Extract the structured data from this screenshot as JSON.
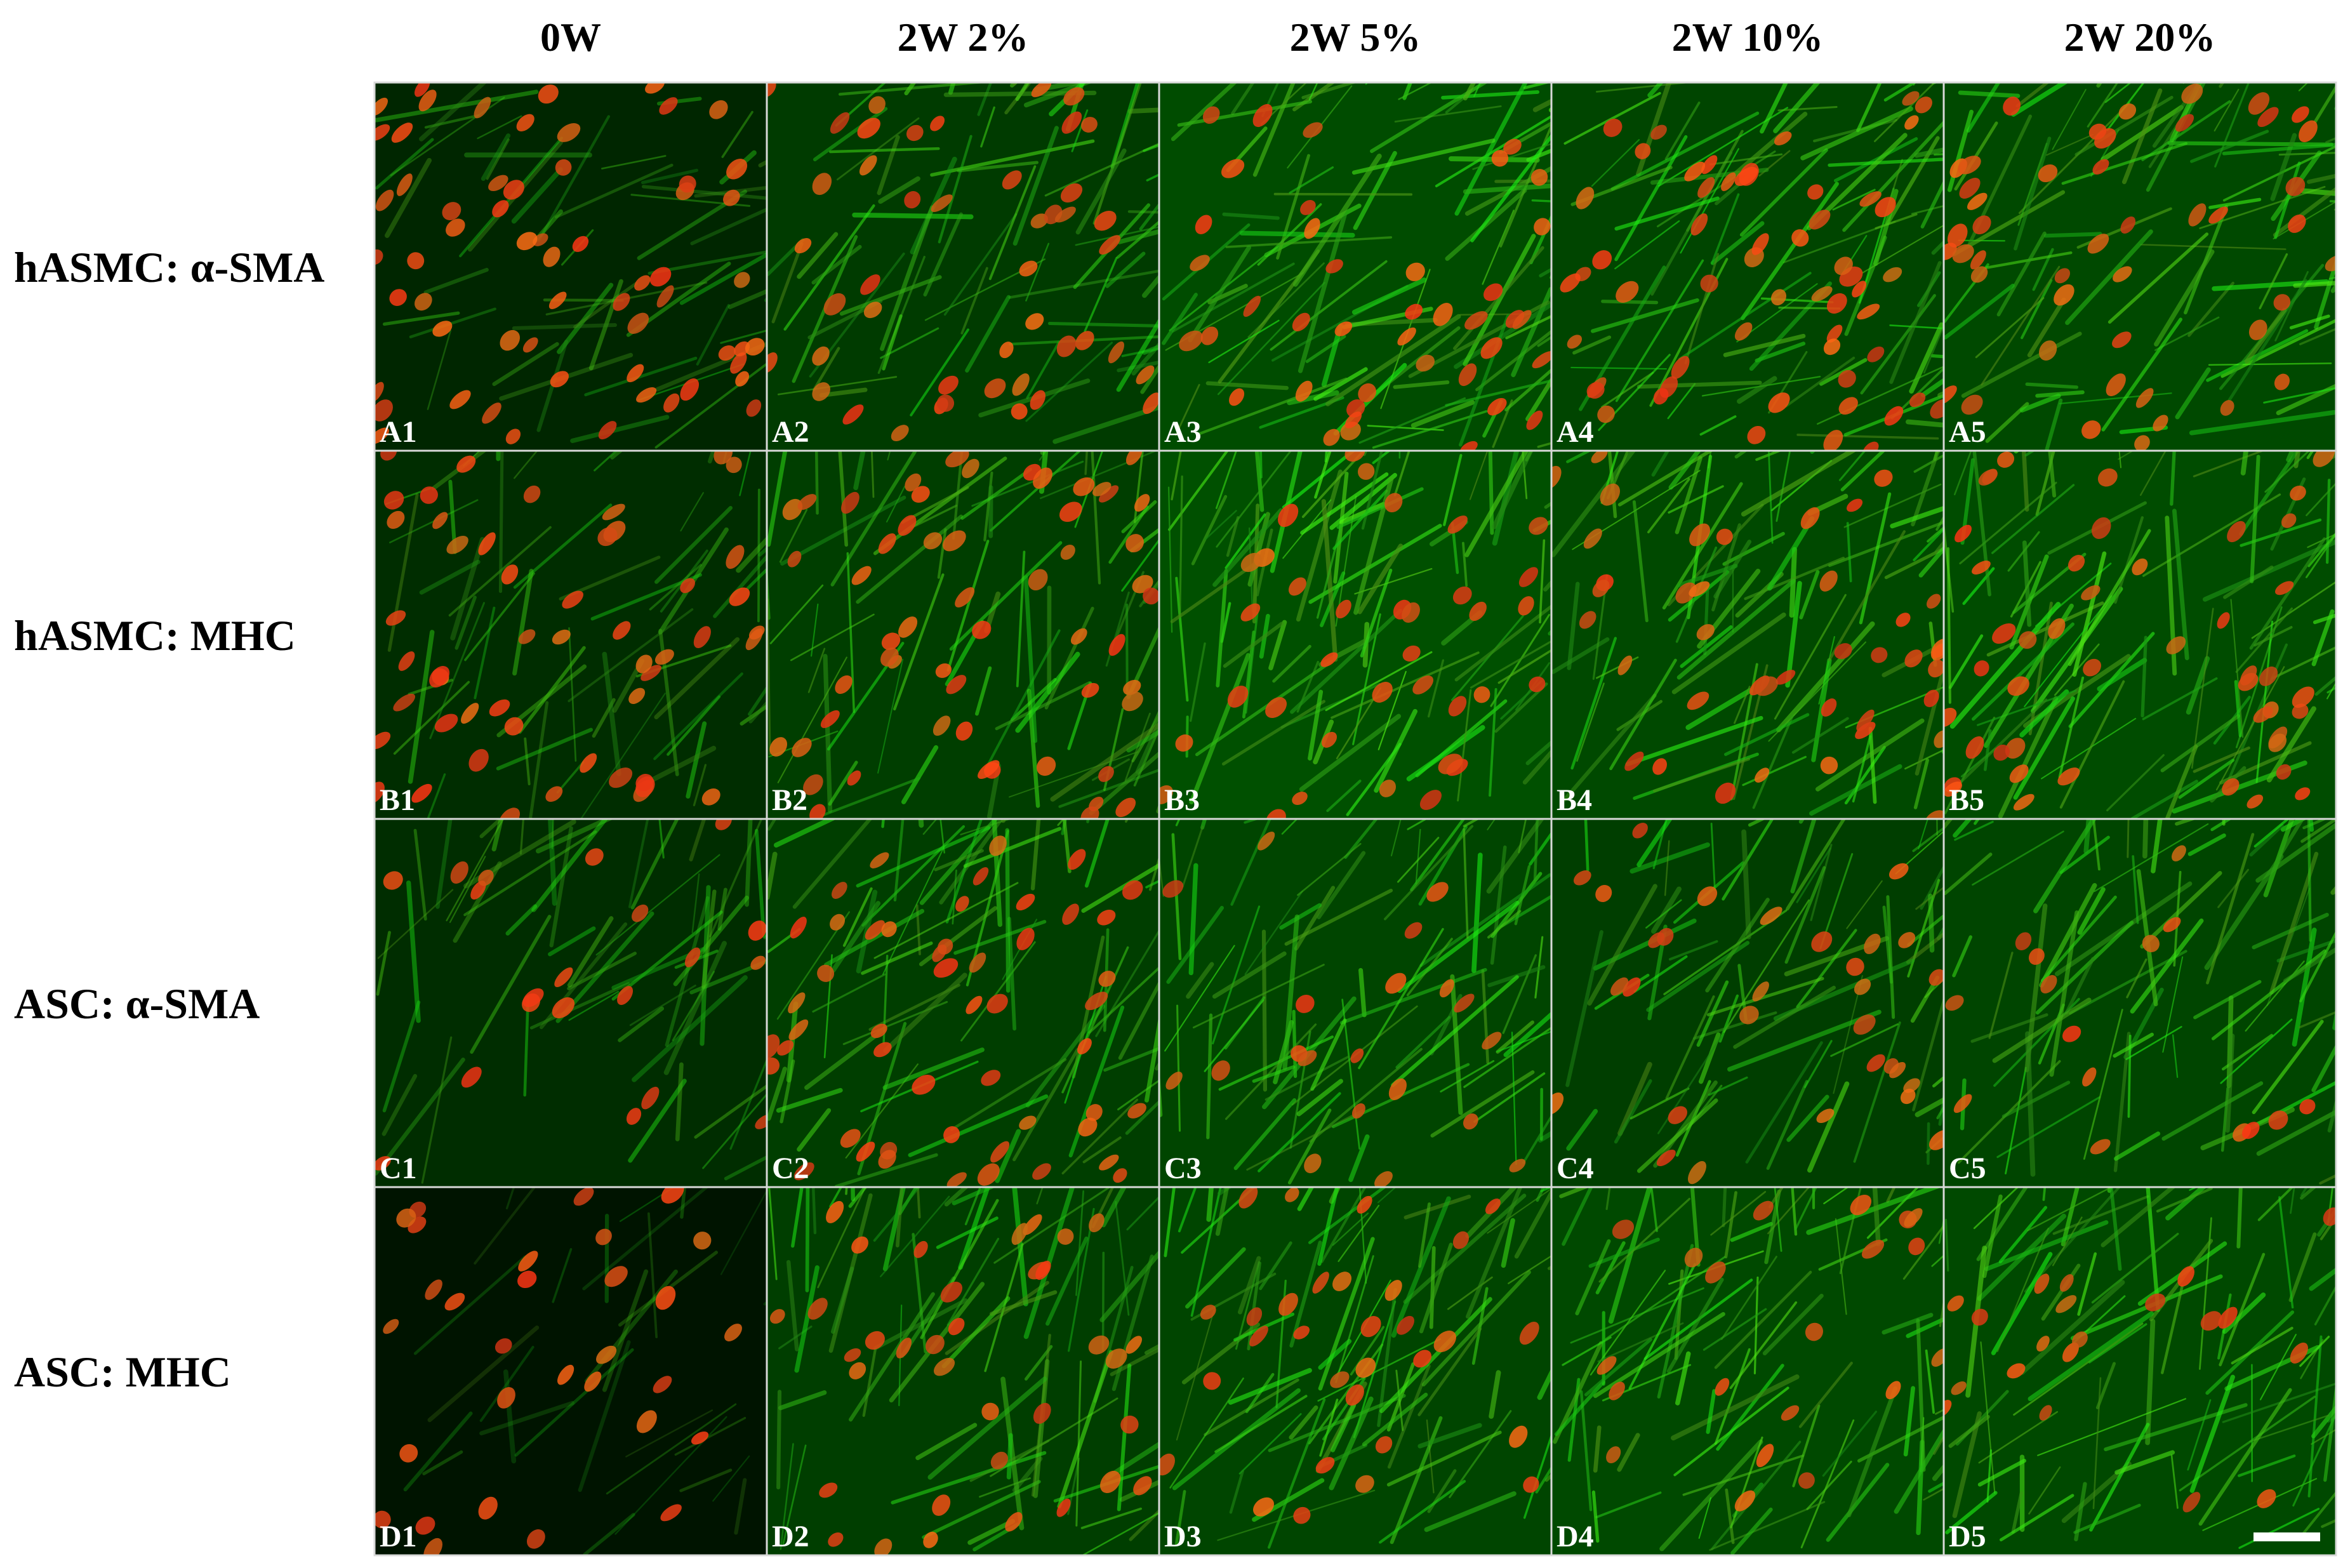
{
  "column_headers": [
    "0W",
    "2W 2%",
    "2W 5%",
    "2W 10%",
    "2W 20%"
  ],
  "rows": [
    {
      "label": "hASMC: α-SMA",
      "panels": [
        "A1",
        "A2",
        "A3",
        "A4",
        "A5"
      ]
    },
    {
      "label": "hASMC: MHC",
      "panels": [
        "B1",
        "B2",
        "B3",
        "B4",
        "B5"
      ]
    },
    {
      "label": "ASC: α-SMA",
      "panels": [
        "C1",
        "C2",
        "C3",
        "C4",
        "C5"
      ]
    },
    {
      "label": "ASC: MHC",
      "panels": [
        "D1",
        "D2",
        "D3",
        "D4",
        "D5"
      ]
    }
  ]
}
